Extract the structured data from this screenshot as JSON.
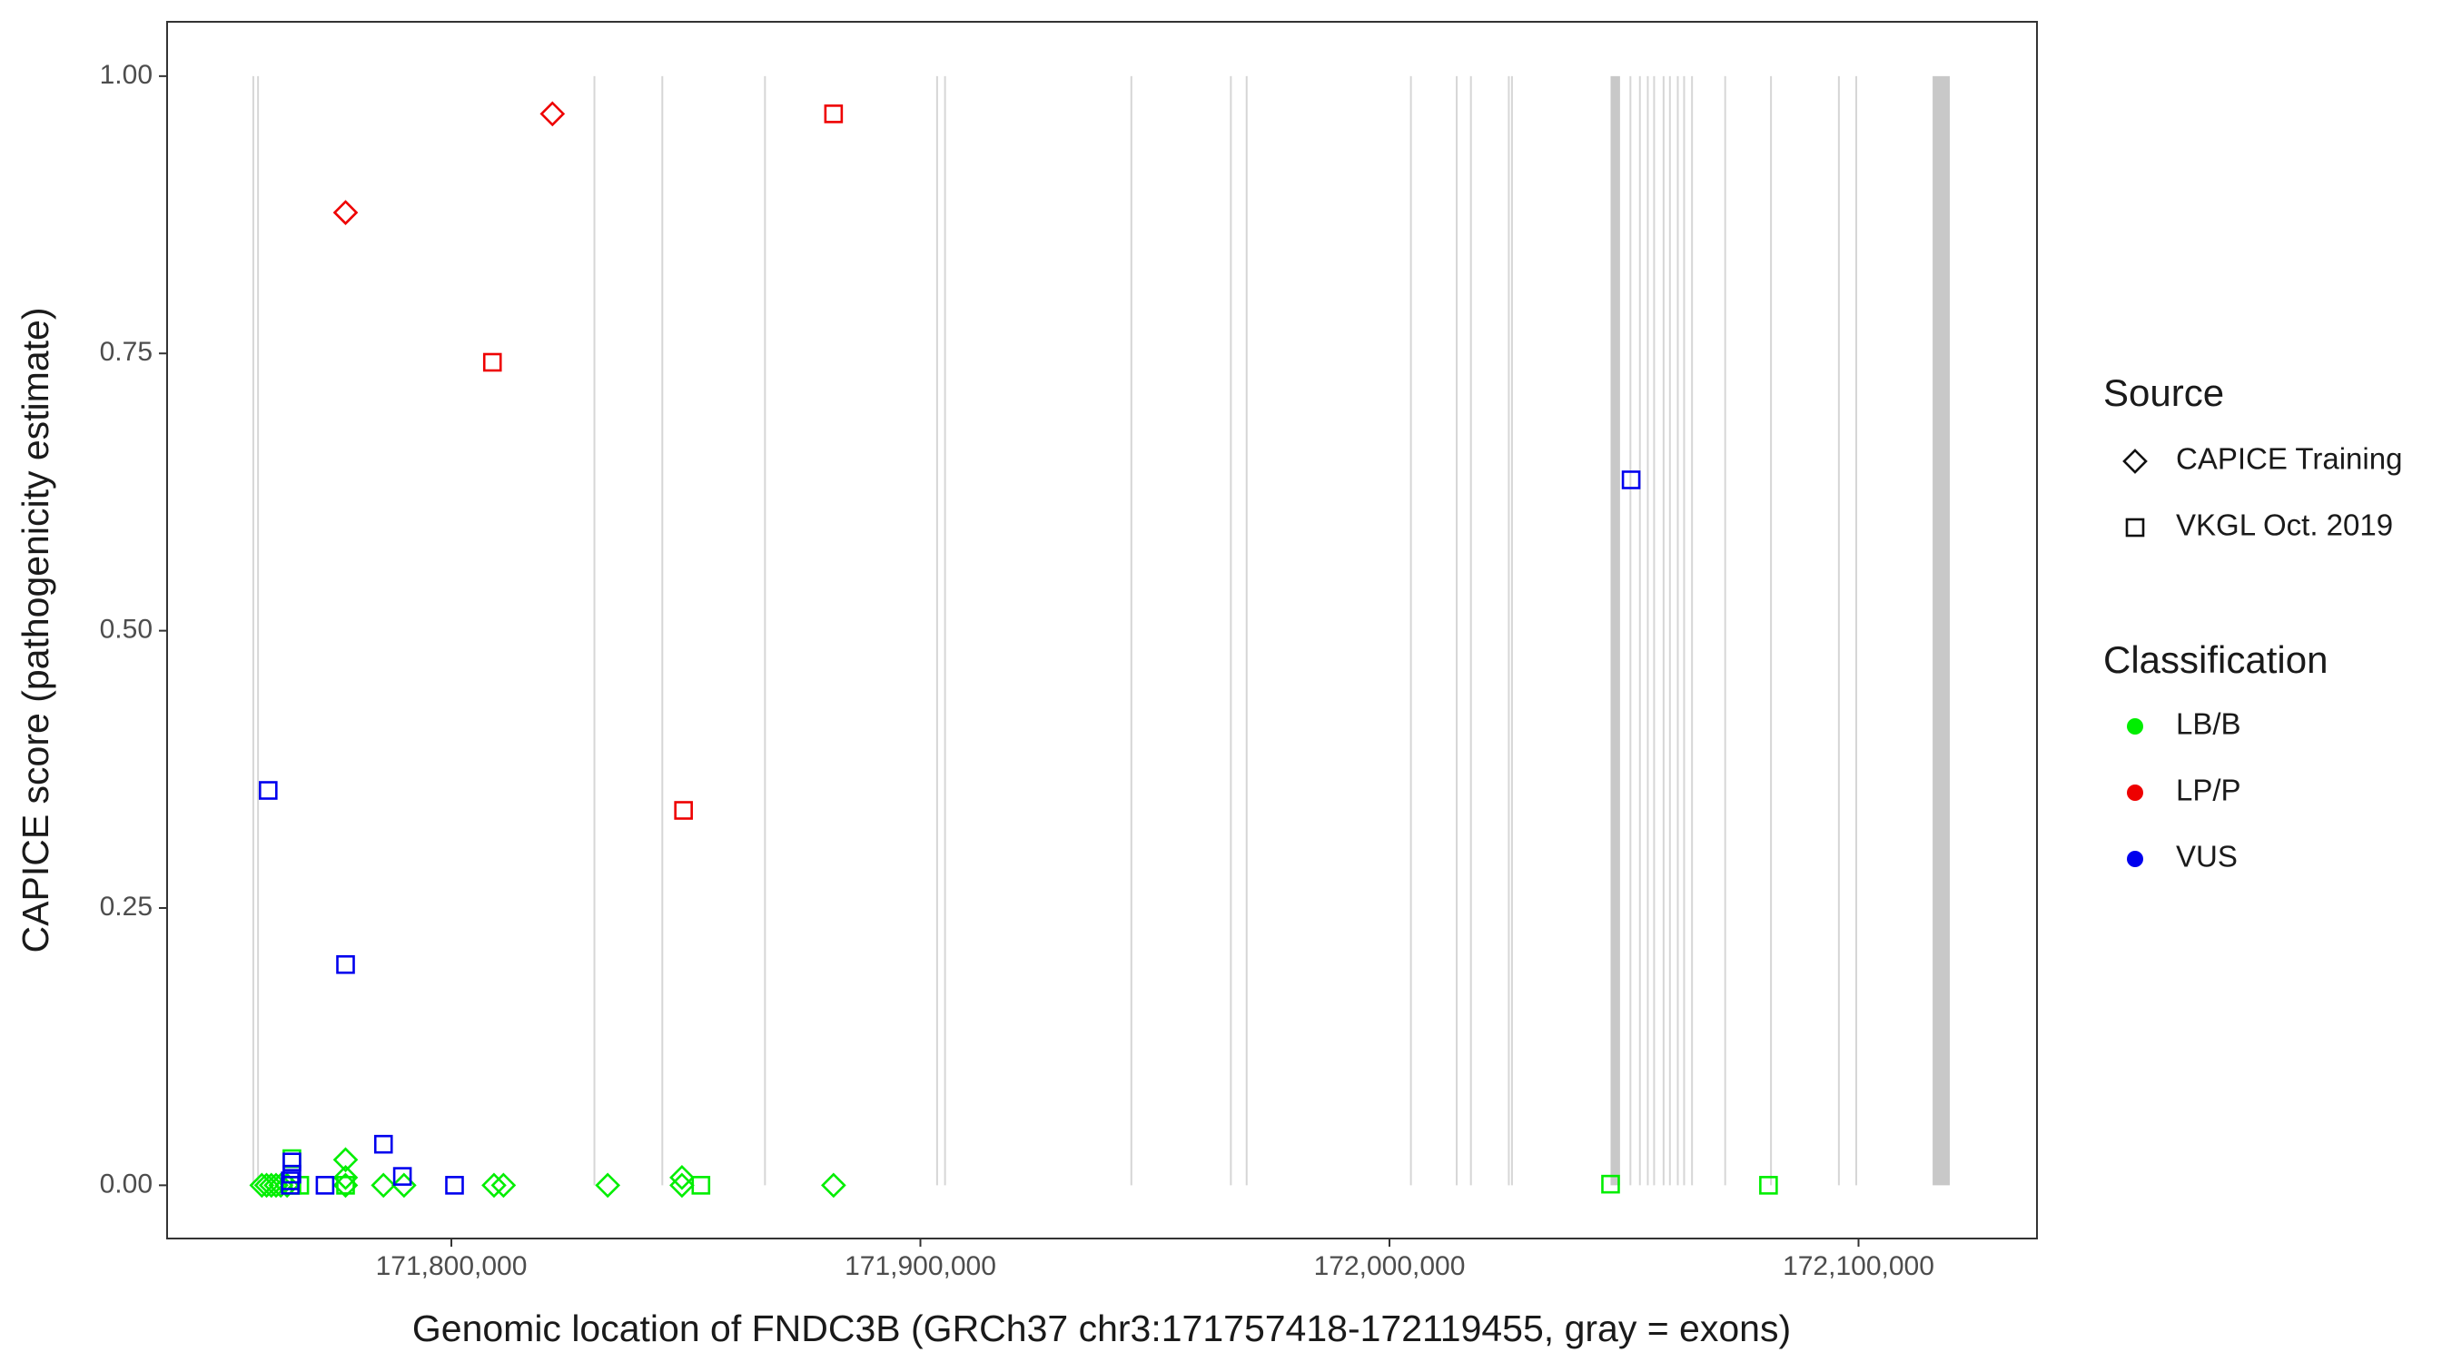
{
  "chart_data": {
    "type": "scatter",
    "x_label": "Genomic location of FNDC3B (GRCh37 chr3:171757418-172119455, gray = exons)",
    "y_label": "CAPICE score (pathogenicity estimate)",
    "xlim": [
      171739394,
      172138047
    ],
    "ylim": [
      -0.048,
      1.049
    ],
    "xticks": [
      {
        "value": 171800000,
        "label": "171,800,000"
      },
      {
        "value": 171900000,
        "label": "171,900,000"
      },
      {
        "value": 172000000,
        "label": "172,000,000"
      },
      {
        "value": 172100000,
        "label": "172,100,000"
      }
    ],
    "yticks": [
      {
        "value": 0,
        "label": "0.00"
      },
      {
        "value": 0.25,
        "label": "0.25"
      },
      {
        "value": 0.5,
        "label": "0.50"
      },
      {
        "value": 0.75,
        "label": "0.75"
      },
      {
        "value": 1,
        "label": "1.00"
      }
    ],
    "grid": false,
    "exon_color": "#c8c8c8",
    "exons": [
      [
        171757576,
        171757776
      ],
      [
        171758586,
        171758786
      ],
      [
        171830303,
        171830503
      ],
      [
        171844781,
        171844981
      ],
      [
        171866667,
        171866867
      ],
      [
        171903367,
        171903567
      ],
      [
        171905051,
        171905251
      ],
      [
        171944781,
        171944981
      ],
      [
        171965993,
        171966193
      ],
      [
        171969360,
        171969560
      ],
      [
        172004377,
        172004577
      ],
      [
        172014141,
        172014341
      ],
      [
        172017172,
        172017372
      ],
      [
        172025253,
        172025453
      ],
      [
        172025926,
        172026126
      ],
      [
        172047138,
        172049158
      ],
      [
        172051178,
        172051378
      ],
      [
        172053199,
        172053399
      ],
      [
        172054882,
        172055082
      ],
      [
        172056229,
        172056429
      ],
      [
        172058249,
        172058449
      ],
      [
        172059596,
        172059796
      ],
      [
        172061279,
        172061479
      ],
      [
        172062626,
        172062826
      ],
      [
        172064310,
        172064510
      ],
      [
        172071380,
        172071580
      ],
      [
        172081145,
        172081345
      ],
      [
        172095623,
        172095823
      ],
      [
        172099327,
        172099527
      ],
      [
        172115800,
        172119455
      ]
    ],
    "shape_legend": {
      "title": "Source",
      "items": [
        {
          "label": "CAPICE Training",
          "shape": "diamond"
        },
        {
          "label": "VKGL Oct. 2019",
          "shape": "square"
        }
      ]
    },
    "color_legend": {
      "title": "Classification",
      "items": [
        {
          "label": "LB/B",
          "color": "#00ee00"
        },
        {
          "label": "LP/P",
          "color": "#ee0000"
        },
        {
          "label": "VUS",
          "color": "#0000ee"
        }
      ]
    },
    "series": [
      {
        "source": "CAPICE Training",
        "classification": "LB/B",
        "shape": "diamond",
        "color": "#00ee00",
        "x": [
          171759596,
          171760606,
          171761616,
          171762626,
          171763636,
          171764983,
          171777441,
          171777441,
          171777441,
          171785522,
          171789899,
          171809091,
          171811111,
          171833333,
          171849158,
          171849158,
          171881481
        ],
        "values": [
          0,
          0,
          0,
          0,
          0,
          0,
          0.023,
          0.007,
          0,
          0,
          0,
          0,
          0,
          0,
          0.007,
          0,
          0
        ]
      },
      {
        "source": "VKGL Oct. 2019",
        "classification": "LB/B",
        "shape": "square",
        "color": "#00ee00",
        "x": [
          171766000,
          171766000,
          171767677,
          171777441,
          171853199,
          172047138,
          172080808
        ],
        "values": [
          0.024,
          0,
          0,
          0,
          0,
          0.001,
          0
        ]
      },
      {
        "source": "CAPICE Training",
        "classification": "LP/P",
        "shape": "diamond",
        "color": "#ee0000",
        "x": [
          171777441,
          171821549
        ],
        "values": [
          0.877,
          0.966
        ]
      },
      {
        "source": "VKGL Oct. 2019",
        "classification": "LP/P",
        "shape": "square",
        "color": "#ee0000",
        "x": [
          171808754,
          171881481,
          171849495
        ],
        "values": [
          0.742,
          0.966,
          0.338
        ]
      },
      {
        "source": "VKGL Oct. 2019",
        "classification": "VUS",
        "shape": "square",
        "color": "#0000ee",
        "x": [
          171760943,
          171777441,
          171785522,
          171789562,
          171800673,
          172051515,
          171765657,
          171766000,
          171766000,
          171773064,
          171765657
        ],
        "values": [
          0.356,
          0.199,
          0.037,
          0.008,
          0,
          0.636,
          0,
          0.01,
          0.021,
          0,
          0.004
        ]
      }
    ]
  }
}
